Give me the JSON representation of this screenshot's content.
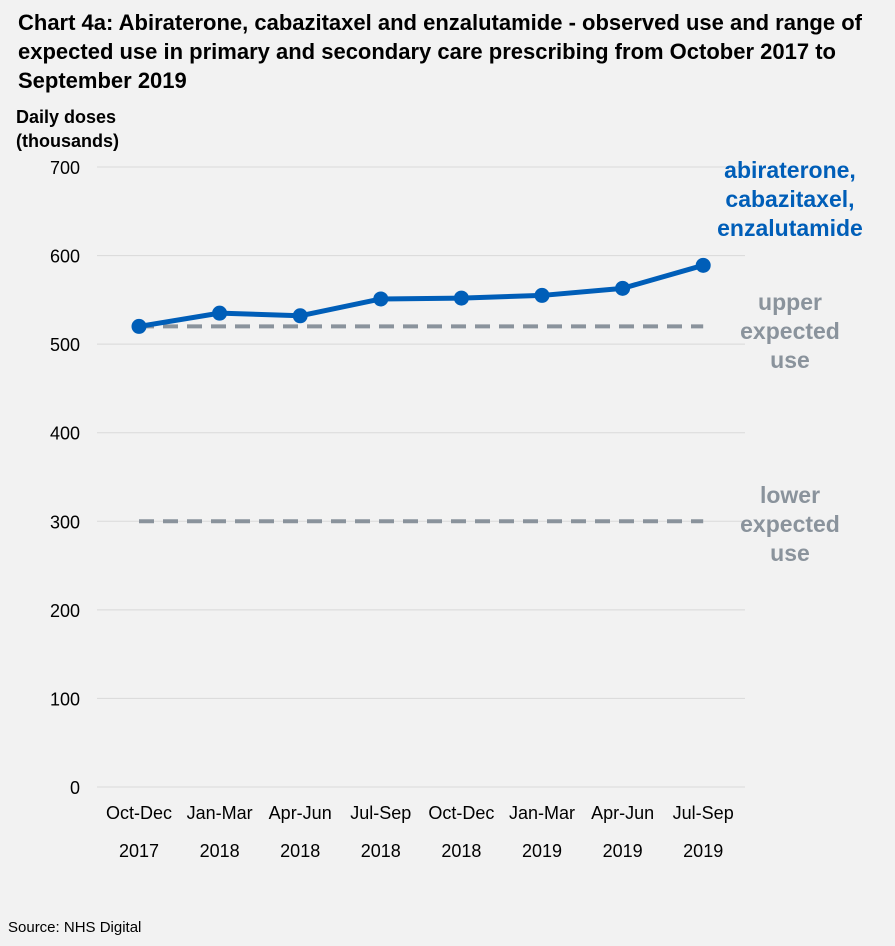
{
  "title": "Chart 4a: Abiraterone, cabazitaxel and enzalutamide - observed use and range of expected use in primary and secondary care prescribing from October 2017 to September 2019",
  "source": "Source: NHS Digital",
  "colors": {
    "background": "#f2f2f2",
    "gridline": "#d9d9d9",
    "observed": "#005eb8",
    "expected": "#8a939c"
  },
  "chart_data": {
    "type": "line",
    "ylabel_lines": [
      "Daily doses",
      "(thousands)"
    ],
    "ylim": [
      0,
      700
    ],
    "yticks": [
      0,
      100,
      200,
      300,
      400,
      500,
      600,
      700
    ],
    "grid": true,
    "legend": "direct labels on right",
    "categories": [
      [
        "Oct-Dec",
        "2017"
      ],
      [
        "Jan-Mar",
        "2018"
      ],
      [
        "Apr-Jun",
        "2018"
      ],
      [
        "Jul-Sep",
        "2018"
      ],
      [
        "Oct-Dec",
        "2018"
      ],
      [
        "Jan-Mar",
        "2019"
      ],
      [
        "Apr-Jun",
        "2019"
      ],
      [
        "Jul-Sep",
        "2019"
      ]
    ],
    "series": [
      {
        "name": "abiraterone, cabazitaxel, enzalutamide",
        "label_lines": [
          "abiraterone,",
          "cabazitaxel,",
          "enzalutamide"
        ],
        "style": "solid-markers",
        "values": [
          520,
          535,
          532,
          551,
          552,
          555,
          563,
          589
        ]
      },
      {
        "name": "upper expected use",
        "label_lines": [
          "upper",
          "expected",
          "use"
        ],
        "style": "dashed",
        "values": [
          520,
          520,
          520,
          520,
          520,
          520,
          520,
          520
        ]
      },
      {
        "name": "lower expected use",
        "label_lines": [
          "lower",
          "expected",
          "use"
        ],
        "style": "dashed",
        "values": [
          300,
          300,
          300,
          300,
          300,
          300,
          300,
          300
        ]
      }
    ]
  }
}
